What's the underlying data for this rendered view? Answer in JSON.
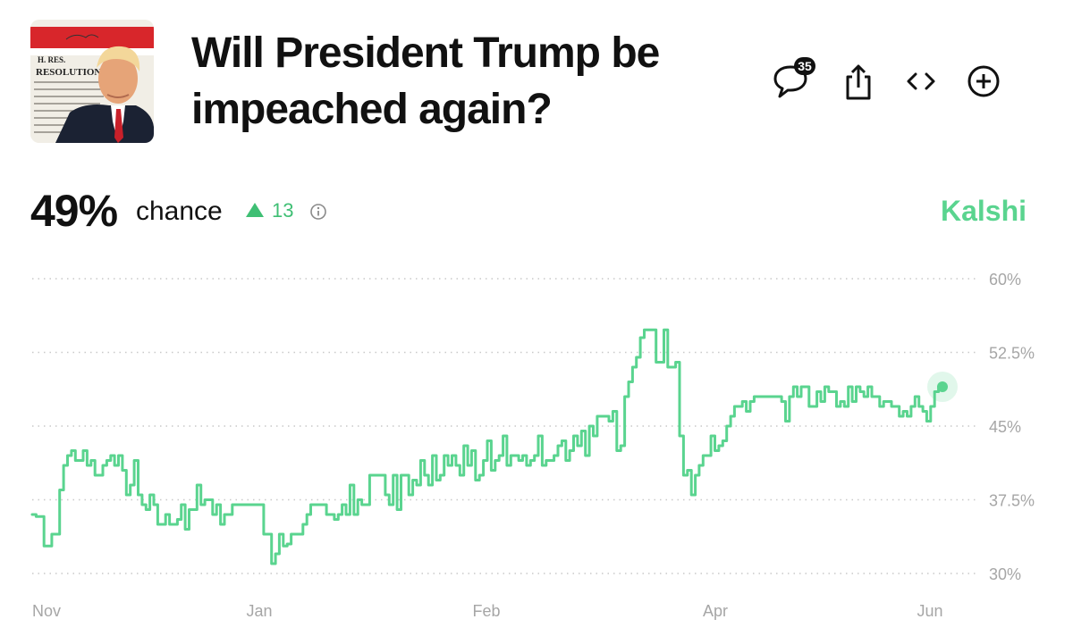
{
  "header": {
    "title": "Will President Trump be impeached again?",
    "thumbnail": {
      "heading": "RESOLUTION",
      "label": "H. RES.",
      "alt_subject": "Donald Trump portrait over impeachment resolution document"
    },
    "comment_count": "35",
    "icons": {
      "comments": "comment-bubble-icon",
      "share": "share-icon",
      "embed": "code-brackets-icon",
      "add": "plus-circle-icon"
    }
  },
  "summary": {
    "probability": "49%",
    "chance_label": "chance",
    "change": "13",
    "change_direction": "up",
    "source": "Kalshi",
    "accent_color": "#5ad48f",
    "change_color": "#3fbf74"
  },
  "chart_data": {
    "type": "line",
    "title": "",
    "xlabel": "",
    "ylabel": "",
    "x_ticks": [
      "Nov",
      "Jan",
      "Feb",
      "Apr",
      "Jun"
    ],
    "y_ticks": [
      "30%",
      "37.5%",
      "45%",
      "52.5%",
      "60%"
    ],
    "ylim": [
      30,
      60
    ],
    "grid": true,
    "line_color": "#5ad48f",
    "series": [
      {
        "name": "",
        "values": [
          36,
          35.8,
          35.8,
          32.8,
          32.8,
          34,
          34,
          38.5,
          41,
          42,
          42.5,
          41.5,
          41.5,
          42.5,
          41,
          41.5,
          40,
          40,
          41,
          41.5,
          42,
          41,
          42,
          40.5,
          38,
          39,
          41.5,
          38,
          37,
          36.5,
          38,
          37,
          35,
          35,
          36,
          35,
          35,
          35.5,
          37,
          34.5,
          36.5,
          36.5,
          39,
          37,
          37.5,
          37.5,
          36,
          37,
          35,
          36,
          36,
          37,
          37,
          37,
          37,
          37,
          37,
          37,
          37,
          34,
          34,
          31,
          32,
          34,
          32.8,
          33,
          34,
          34,
          34,
          35,
          36,
          37,
          37,
          37,
          37,
          36,
          36,
          35.5,
          36,
          37,
          36,
          39,
          36,
          37.5,
          37,
          37,
          40,
          40,
          40,
          40,
          38,
          37,
          40,
          36.5,
          40,
          40,
          38,
          39.5,
          39,
          41.5,
          40,
          39,
          42,
          39.5,
          40,
          42,
          41,
          42,
          41,
          40,
          43,
          41,
          42.5,
          39.5,
          40,
          41.5,
          43.5,
          40.5,
          41.5,
          42,
          44,
          41,
          42,
          42,
          41.5,
          42,
          41,
          41.5,
          42,
          44,
          41,
          41.5,
          41.5,
          42,
          43,
          43.5,
          41.5,
          42.5,
          44,
          43,
          44.5,
          42,
          45,
          44,
          46,
          46,
          46,
          45.5,
          46.5,
          42.5,
          43,
          48,
          49.5,
          51,
          52,
          54,
          54.8,
          54.8,
          54.8,
          51.5,
          51.5,
          54.8,
          51,
          51,
          51.5,
          44,
          40,
          40.5,
          38,
          40,
          41,
          42,
          42,
          44,
          42.5,
          43,
          43.5,
          45,
          46,
          47,
          47,
          47.5,
          46.5,
          47.5,
          48,
          48,
          48,
          48,
          48,
          48,
          48,
          47.5,
          45.5,
          48,
          49,
          48,
          49,
          49,
          47,
          47,
          48.5,
          47.5,
          49,
          48.5,
          48.5,
          47,
          47.5,
          47,
          49,
          47.5,
          49,
          48.5,
          48,
          49,
          48,
          48,
          47,
          47.5,
          47.5,
          47,
          47,
          46,
          46.5,
          46,
          47,
          48,
          47,
          46.5,
          45.5,
          47,
          48.5,
          49,
          49
        ]
      }
    ],
    "last_value": 49
  }
}
